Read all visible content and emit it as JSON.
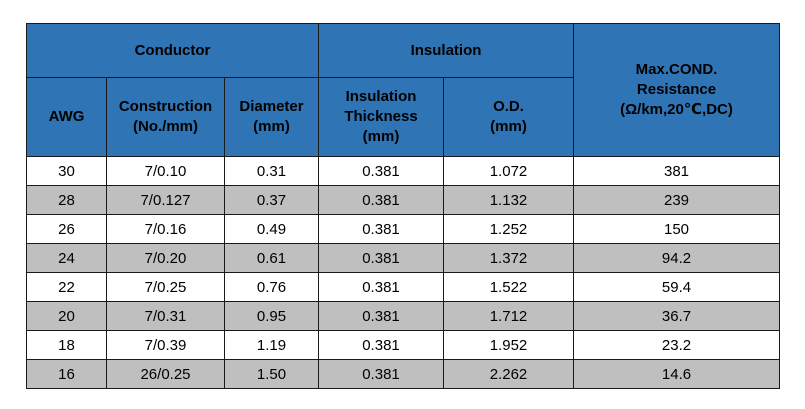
{
  "table": {
    "groups": {
      "conductor": "Conductor",
      "insulation": "Insulation",
      "resistance": "Max.COND.\nResistance\n(Ω/km,20℃,DC)"
    },
    "columns": {
      "awg": "AWG",
      "construction": "Construction\n(No./mm)",
      "diameter": "Diameter\n(mm)",
      "insulation_thickness": "Insulation\nThickness\n(mm)",
      "od": "O.D.\n(mm)"
    },
    "rows": [
      {
        "awg": "30",
        "construction": "7/0.10",
        "diameter": "0.31",
        "insulation_thickness": "0.381",
        "od": "1.072",
        "resistance": "381"
      },
      {
        "awg": "28",
        "construction": "7/0.127",
        "diameter": "0.37",
        "insulation_thickness": "0.381",
        "od": "1.132",
        "resistance": "239"
      },
      {
        "awg": "26",
        "construction": "7/0.16",
        "diameter": "0.49",
        "insulation_thickness": "0.381",
        "od": "1.252",
        "resistance": "150"
      },
      {
        "awg": "24",
        "construction": "7/0.20",
        "diameter": "0.61",
        "insulation_thickness": "0.381",
        "od": "1.372",
        "resistance": "94.2"
      },
      {
        "awg": "22",
        "construction": "7/0.25",
        "diameter": "0.76",
        "insulation_thickness": "0.381",
        "od": "1.522",
        "resistance": "59.4"
      },
      {
        "awg": "20",
        "construction": "7/0.31",
        "diameter": "0.95",
        "insulation_thickness": "0.381",
        "od": "1.712",
        "resistance": "36.7"
      },
      {
        "awg": "18",
        "construction": "7/0.39",
        "diameter": "1.19",
        "insulation_thickness": "0.381",
        "od": "1.952",
        "resistance": "23.2"
      },
      {
        "awg": "16",
        "construction": "26/0.25",
        "diameter": "1.50",
        "insulation_thickness": "0.381",
        "od": "2.262",
        "resistance": "14.6"
      }
    ]
  },
  "colors": {
    "header_bg": "#2f74b5",
    "row_alt_bg": "#bfbfbf",
    "border": "#1a1a1a"
  }
}
